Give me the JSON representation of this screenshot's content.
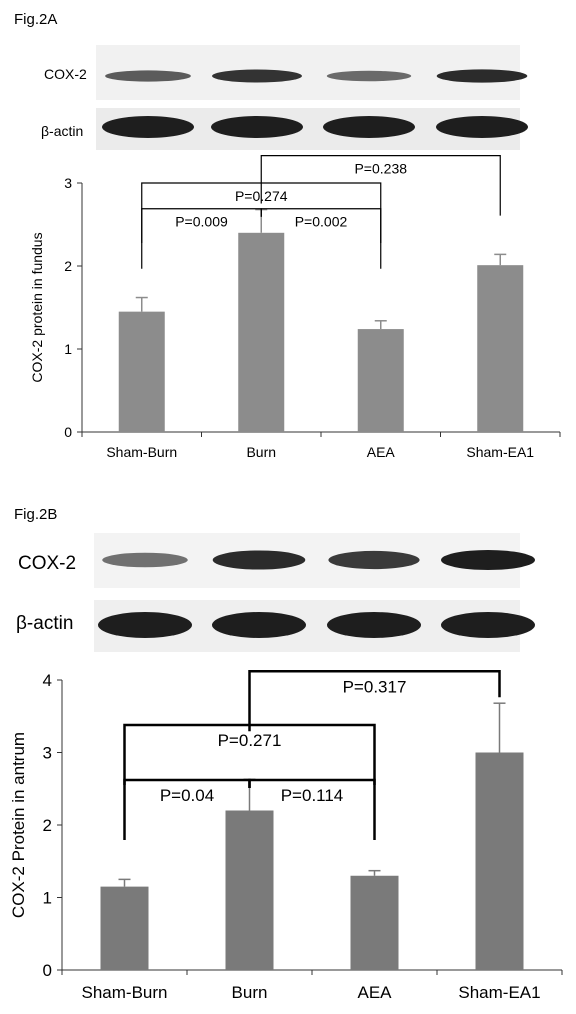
{
  "colors": {
    "bar": "#8c8c8c",
    "bar_dark": "#7a7a7a",
    "axis": "#333333",
    "blot_band": "#1e1e1e"
  },
  "figures": [
    {
      "label": "Fig.2A",
      "blot": {
        "lanes": [
          "Sham-Burn",
          "Burn",
          "AEA",
          "Sham-EA1"
        ],
        "rows": [
          {
            "label": "COX-2",
            "intensity": [
              0.55,
              0.85,
              0.45,
              0.9
            ]
          },
          {
            "label": "β-actin",
            "intensity": [
              1.0,
              1.0,
              1.0,
              1.0
            ]
          }
        ]
      }
    },
    {
      "label": "Fig.2B",
      "blot": {
        "lanes": [
          "Sham-Burn",
          "Burn",
          "AEA",
          "Sham-EA1"
        ],
        "rows": [
          {
            "label": "COX-2",
            "intensity": [
              0.4,
              0.9,
              0.8,
              1.0
            ]
          },
          {
            "label": "β-actin",
            "intensity": [
              1.0,
              1.0,
              1.0,
              1.0
            ]
          }
        ]
      }
    }
  ],
  "chart_data": [
    {
      "type": "bar",
      "categories": [
        "Sham-Burn",
        "Burn",
        "AEA",
        "Sham-EA1"
      ],
      "values": [
        1.45,
        2.4,
        1.24,
        2.01
      ],
      "errors": [
        0.17,
        0.28,
        0.1,
        0.13
      ],
      "ylabel": "COX-2 protein in fundus",
      "xlabel": "",
      "ylim": [
        0,
        3
      ],
      "yticks": [
        "0",
        "1",
        "2",
        "3"
      ],
      "grid": false,
      "annotations": [
        {
          "text": "P=0.009",
          "from": 0,
          "to": 1,
          "y": 2.69
        },
        {
          "text": "P=0.002",
          "from": 1,
          "to": 2,
          "y": 2.69
        },
        {
          "text": "P=0.274",
          "from": 0,
          "to": 2,
          "y": 3.0
        },
        {
          "text": "P=0.238",
          "from": 1,
          "to": 3,
          "y": 3.33
        }
      ]
    },
    {
      "type": "bar",
      "categories": [
        "Sham-Burn",
        "Burn",
        "AEA",
        "Sham-EA1"
      ],
      "values": [
        1.15,
        2.2,
        1.3,
        3.0
      ],
      "errors": [
        0.1,
        0.43,
        0.07,
        0.68
      ],
      "ylabel": "COX-2 Protein in antrum",
      "xlabel": "",
      "ylim": [
        0,
        4
      ],
      "yticks": [
        "0",
        "1",
        "2",
        "3",
        "4"
      ],
      "grid": false,
      "annotations": [
        {
          "text": "P=0.04",
          "from": 0,
          "to": 1,
          "y": 2.62
        },
        {
          "text": "P=0.114",
          "from": 1,
          "to": 2,
          "y": 2.62
        },
        {
          "text": "P=0.271",
          "from": 0,
          "to": 2,
          "y": 3.38
        },
        {
          "text": "P=0.317",
          "from": 1,
          "to": 3,
          "y": 4.12
        }
      ]
    }
  ]
}
